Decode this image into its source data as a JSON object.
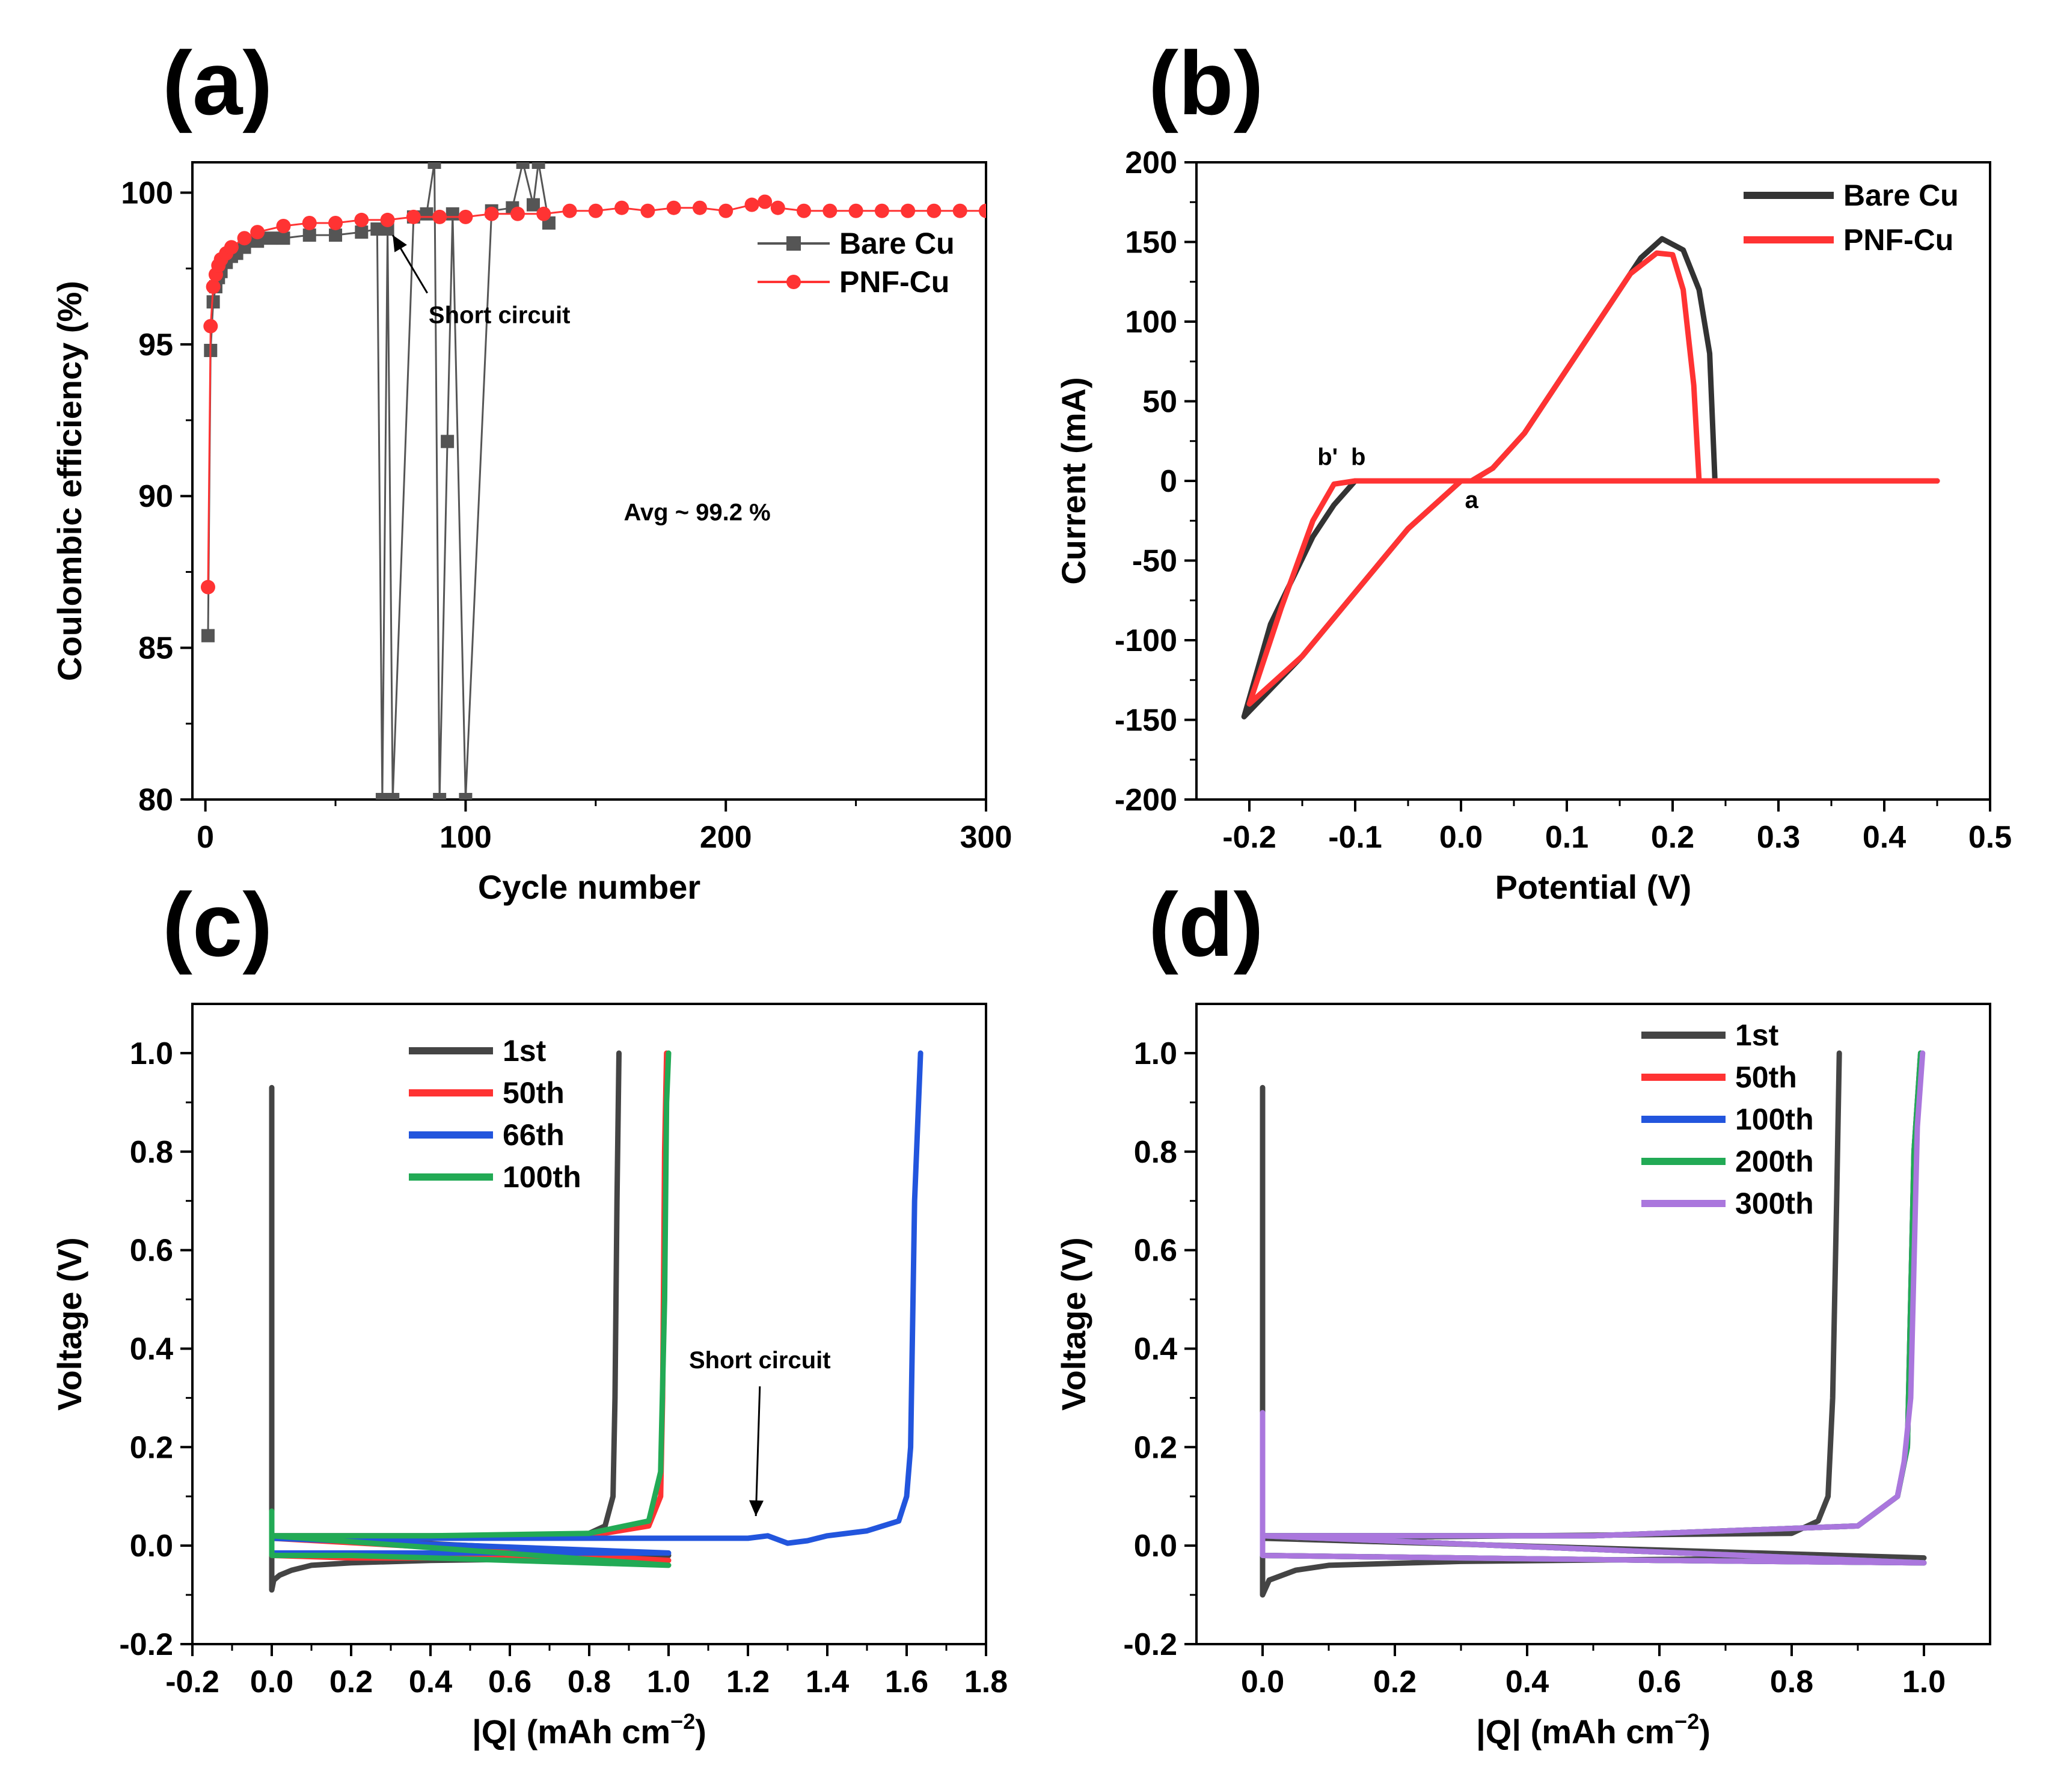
{
  "panel_labels": [
    "(a)",
    "(b)",
    "(c)",
    "(d)"
  ],
  "chart_data": [
    {
      "panel": "(a)",
      "type": "scatter",
      "xlabel": "Cycle number",
      "ylabel": "Coulombic efficiency (%)",
      "xlim": [
        -5,
        300
      ],
      "ylim": [
        80,
        101
      ],
      "xticks": [
        0,
        100,
        200,
        300
      ],
      "yticks": [
        80,
        85,
        90,
        95,
        100
      ],
      "legend": "right",
      "annotations": [
        {
          "text": "Short circuit",
          "x": 113,
          "y": 95.7,
          "arrow_to": [
            72,
            98.6
          ]
        },
        {
          "text": "Avg ~ 99.2 %",
          "x": 189,
          "y": 89.2,
          "color": "#ff2a2a"
        }
      ],
      "series": [
        {
          "name": "Bare Cu",
          "color": "#555555",
          "marker": "square",
          "x": [
            1,
            2,
            3,
            4,
            5,
            6,
            8,
            10,
            12,
            15,
            20,
            25,
            30,
            40,
            50,
            60,
            66,
            68,
            70,
            72,
            80,
            85,
            88,
            90,
            93,
            95,
            100,
            110,
            118,
            122,
            126,
            128,
            132
          ],
          "y": [
            85.4,
            94.8,
            96.4,
            96.9,
            97.2,
            97.4,
            97.7,
            97.9,
            98.0,
            98.2,
            98.4,
            98.5,
            98.5,
            98.6,
            98.6,
            98.7,
            98.8,
            80,
            98.8,
            80,
            99.2,
            99.3,
            101,
            80,
            91.8,
            99.3,
            80,
            99.4,
            99.5,
            101,
            99.6,
            101,
            99.0
          ]
        },
        {
          "name": "PNF-Cu",
          "color": "#ff3333",
          "marker": "circle",
          "x": [
            1,
            2,
            3,
            4,
            5,
            6,
            8,
            10,
            15,
            20,
            30,
            40,
            50,
            60,
            70,
            80,
            90,
            100,
            110,
            120,
            130,
            140,
            150,
            160,
            170,
            180,
            190,
            200,
            210,
            215,
            220,
            230,
            240,
            250,
            260,
            270,
            280,
            290,
            300
          ],
          "y": [
            87.0,
            95.6,
            96.9,
            97.3,
            97.6,
            97.8,
            98.0,
            98.2,
            98.5,
            98.7,
            98.9,
            99.0,
            99.0,
            99.1,
            99.1,
            99.2,
            99.2,
            99.2,
            99.3,
            99.3,
            99.3,
            99.4,
            99.4,
            99.5,
            99.4,
            99.5,
            99.5,
            99.4,
            99.6,
            99.7,
            99.5,
            99.4,
            99.4,
            99.4,
            99.4,
            99.4,
            99.4,
            99.4,
            99.4
          ]
        }
      ]
    },
    {
      "panel": "(b)",
      "type": "line",
      "xlabel": "Potential (V)",
      "ylabel": "Current (mA)",
      "xlim": [
        -0.25,
        0.5
      ],
      "ylim": [
        -200,
        200
      ],
      "xticks": [
        -0.2,
        -0.1,
        0.0,
        0.1,
        0.2,
        0.3,
        0.4,
        0.5
      ],
      "yticks": [
        -200,
        -150,
        -100,
        -50,
        0,
        50,
        100,
        150,
        200
      ],
      "legend": "top-right",
      "annotations": [
        {
          "text": "b'",
          "x": -0.126,
          "y": 10,
          "color": "#ff2a2a"
        },
        {
          "text": "b",
          "x": -0.097,
          "y": 10
        },
        {
          "text": "a",
          "x": 0.01,
          "y": -17
        }
      ],
      "series": [
        {
          "name": "Bare Cu",
          "color": "#333333",
          "x": [
            0.45,
            0.3,
            0.24,
            0.235,
            0.225,
            0.21,
            0.19,
            0.17,
            0.14,
            0.1,
            0.06,
            0.03,
            0.01,
            0.0,
            -0.05,
            -0.1,
            -0.15,
            -0.205,
            -0.18,
            -0.14,
            -0.12,
            -0.1,
            -0.05,
            0.0,
            0.45
          ],
          "y": [
            0,
            0,
            0,
            80,
            120,
            145,
            152,
            140,
            110,
            70,
            30,
            8,
            0,
            0,
            -30,
            -70,
            -110,
            -148,
            -90,
            -35,
            -15,
            0,
            0,
            0,
            0
          ]
        },
        {
          "name": "PNF-Cu",
          "color": "#ff3333",
          "x": [
            0.45,
            0.3,
            0.225,
            0.22,
            0.21,
            0.2,
            0.185,
            0.16,
            0.13,
            0.1,
            0.06,
            0.03,
            0.01,
            0.0,
            -0.05,
            -0.1,
            -0.15,
            -0.2,
            -0.17,
            -0.14,
            -0.12,
            -0.1,
            -0.05,
            0.0,
            0.45
          ],
          "y": [
            0,
            0,
            0,
            60,
            120,
            142,
            143,
            130,
            100,
            70,
            30,
            8,
            0,
            0,
            -30,
            -70,
            -110,
            -140,
            -80,
            -25,
            -2,
            0,
            0,
            0,
            0
          ]
        }
      ]
    },
    {
      "panel": "(c)",
      "type": "line",
      "xlabel": "|Q| (mAh cm",
      "xlabel_sup": "−2",
      "xlabel_end": ")",
      "ylabel": "Voltage (V)",
      "xlim": [
        -0.2,
        1.8
      ],
      "ylim": [
        -0.2,
        1.1
      ],
      "xticks": [
        -0.2,
        0.0,
        0.2,
        0.4,
        0.6,
        0.8,
        1.0,
        1.2,
        1.4,
        1.6,
        1.8
      ],
      "yticks": [
        -0.2,
        0.0,
        0.2,
        0.4,
        0.6,
        0.8,
        1.0
      ],
      "legend": "top-center",
      "annotations": [
        {
          "text": "Short circuit",
          "x": 1.23,
          "y": 0.36,
          "arrow_to": [
            1.22,
            0.06
          ]
        }
      ],
      "series": [
        {
          "name": "1st",
          "color": "#444444",
          "x": [
            0.0,
            0.0,
            0.0,
            0.005,
            0.02,
            0.05,
            0.1,
            0.2,
            0.4,
            0.6,
            0.8,
            1.0,
            1.0,
            0.0,
            0.2,
            0.4,
            0.6,
            0.8,
            0.84,
            0.86,
            0.865,
            0.87,
            0.875
          ],
          "y": [
            0.93,
            0.0,
            -0.09,
            -0.07,
            -0.06,
            -0.05,
            -0.04,
            -0.035,
            -0.03,
            -0.028,
            -0.025,
            -0.02,
            -0.02,
            0.02,
            0.02,
            0.02,
            0.02,
            0.025,
            0.04,
            0.1,
            0.3,
            0.7,
            1.0
          ]
        },
        {
          "name": "50th",
          "color": "#ff3333",
          "x": [
            0.0,
            0.0,
            0.2,
            0.4,
            0.6,
            0.8,
            1.0,
            0.0,
            0.4,
            0.8,
            0.95,
            0.98,
            0.985,
            0.99,
            0.995
          ],
          "y": [
            0.03,
            -0.02,
            -0.025,
            -0.025,
            -0.025,
            -0.03,
            -0.03,
            0.015,
            0.015,
            0.02,
            0.04,
            0.1,
            0.3,
            0.8,
            1.0
          ]
        },
        {
          "name": "66th",
          "color": "#2255dd",
          "x": [
            0.0,
            0.0,
            0.4,
            0.8,
            1.0,
            0.0,
            0.4,
            0.8,
            1.1,
            1.2,
            1.25,
            1.3,
            1.35,
            1.4,
            1.5,
            1.58,
            1.6,
            1.61,
            1.62,
            1.635
          ],
          "y": [
            0.03,
            -0.015,
            -0.015,
            -0.015,
            -0.015,
            0.015,
            0.015,
            0.015,
            0.015,
            0.015,
            0.02,
            0.005,
            0.01,
            0.02,
            0.03,
            0.05,
            0.1,
            0.2,
            0.7,
            1.0
          ]
        },
        {
          "name": "100th",
          "color": "#22aa55",
          "x": [
            0.0,
            0.0,
            0.2,
            0.4,
            0.6,
            0.8,
            1.0,
            0.0,
            0.4,
            0.8,
            0.95,
            0.98,
            0.99,
            0.995,
            1.0
          ],
          "y": [
            0.07,
            -0.02,
            -0.02,
            -0.025,
            -0.03,
            -0.035,
            -0.04,
            0.02,
            0.02,
            0.025,
            0.05,
            0.15,
            0.5,
            0.9,
            1.0
          ]
        }
      ]
    },
    {
      "panel": "(d)",
      "type": "line",
      "xlabel": "|Q| (mAh cm",
      "xlabel_sup": "−2",
      "xlabel_end": ")",
      "ylabel": "Voltage (V)",
      "xlim": [
        -0.1,
        1.1
      ],
      "ylim": [
        -0.2,
        1.1
      ],
      "xticks": [
        0.0,
        0.2,
        0.4,
        0.6,
        0.8,
        1.0
      ],
      "yticks": [
        -0.2,
        0.0,
        0.2,
        0.4,
        0.6,
        0.8,
        1.0
      ],
      "legend": "top-right",
      "series": [
        {
          "name": "1st",
          "color": "#444444",
          "x": [
            0.0,
            0.0,
            0.0,
            0.01,
            0.05,
            0.1,
            0.3,
            0.6,
            0.9,
            1.0,
            0.0,
            0.4,
            0.8,
            0.84,
            0.855,
            0.862,
            0.868,
            0.872
          ],
          "y": [
            0.93,
            0.0,
            -0.1,
            -0.07,
            -0.05,
            -0.04,
            -0.032,
            -0.028,
            -0.025,
            -0.025,
            0.015,
            0.02,
            0.025,
            0.05,
            0.1,
            0.3,
            0.7,
            1.0
          ]
        },
        {
          "name": "50th",
          "color": "#ff3333",
          "x": [
            0.0,
            0.0,
            0.3,
            0.6,
            1.0,
            0.0,
            0.5,
            0.9,
            0.96,
            0.975,
            0.985,
            0.995
          ],
          "y": [
            0.03,
            -0.02,
            -0.025,
            -0.03,
            -0.035,
            0.02,
            0.02,
            0.04,
            0.1,
            0.2,
            0.8,
            1.0
          ]
        },
        {
          "name": "100th",
          "color": "#2255dd",
          "x": [
            0.0,
            0.0,
            0.3,
            0.6,
            1.0,
            0.0,
            0.5,
            0.9,
            0.96,
            0.975,
            0.985,
            0.995
          ],
          "y": [
            0.03,
            -0.02,
            -0.025,
            -0.03,
            -0.035,
            0.02,
            0.02,
            0.04,
            0.1,
            0.2,
            0.8,
            1.0
          ]
        },
        {
          "name": "200th",
          "color": "#22aa55",
          "x": [
            0.0,
            0.0,
            0.3,
            0.6,
            1.0,
            0.0,
            0.5,
            0.9,
            0.96,
            0.975,
            0.985,
            0.995
          ],
          "y": [
            0.05,
            -0.02,
            -0.025,
            -0.03,
            -0.035,
            0.02,
            0.02,
            0.04,
            0.1,
            0.2,
            0.8,
            1.0
          ]
        },
        {
          "name": "300th",
          "color": "#aa77dd",
          "x": [
            0.0,
            0.0,
            0.0,
            0.3,
            0.6,
            1.0,
            0.0,
            0.5,
            0.9,
            0.96,
            0.97,
            0.98,
            0.99,
            0.998
          ],
          "y": [
            0.27,
            0.0,
            -0.02,
            -0.025,
            -0.03,
            -0.035,
            0.02,
            0.02,
            0.04,
            0.1,
            0.17,
            0.3,
            0.85,
            1.0
          ]
        }
      ]
    }
  ]
}
